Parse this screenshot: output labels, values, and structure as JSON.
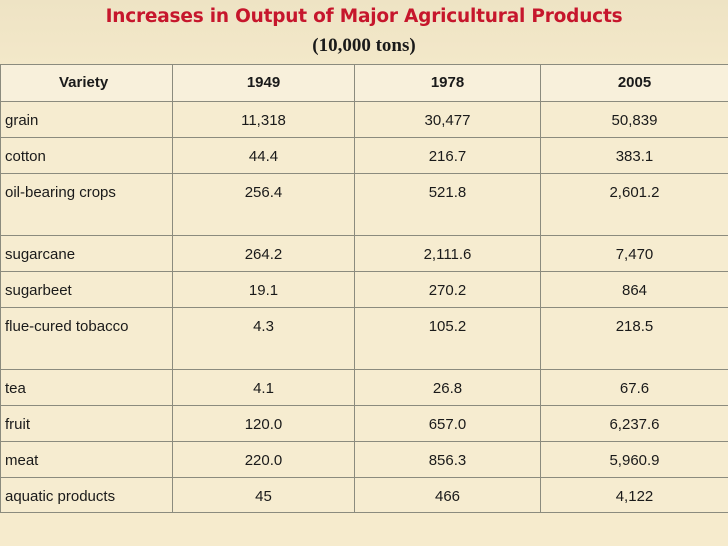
{
  "title": "Increases in Output of Major Agricultural Products",
  "subtitle": "(10,000 tons)",
  "headers": [
    "Variety",
    "1949",
    "1978",
    "2005"
  ],
  "rows": [
    {
      "variety": "grain",
      "y1949": "11,318",
      "y1978": "30,477",
      "y2005": "50,839"
    },
    {
      "variety": "cotton",
      "y1949": "44.4",
      "y1978": "216.7",
      "y2005": "383.1"
    },
    {
      "variety": "oil-bearing crops",
      "y1949": "256.4",
      "y1978": "521.8",
      "y2005": "2,601.2"
    },
    {
      "variety": "sugarcane",
      "y1949": "264.2",
      "y1978": "2,111.6",
      "y2005": "7,470"
    },
    {
      "variety": "sugarbeet",
      "y1949": "19.1",
      "y1978": "270.2",
      "y2005": "864"
    },
    {
      "variety": "flue-cured tobacco",
      "y1949": "4.3",
      "y1978": "105.2",
      "y2005": "218.5"
    },
    {
      "variety": "tea",
      "y1949": "4.1",
      "y1978": "26.8",
      "y2005": "67.6"
    },
    {
      "variety": "fruit",
      "y1949": "120.0",
      "y1978": "657.0",
      "y2005": "6,237.6"
    },
    {
      "variety": "meat",
      "y1949": "220.0",
      "y1978": "856.3",
      "y2005": "5,960.9"
    },
    {
      "variety": "aquatic products",
      "y1949": "45",
      "y1978": "466",
      "y2005": "4,122"
    }
  ]
}
